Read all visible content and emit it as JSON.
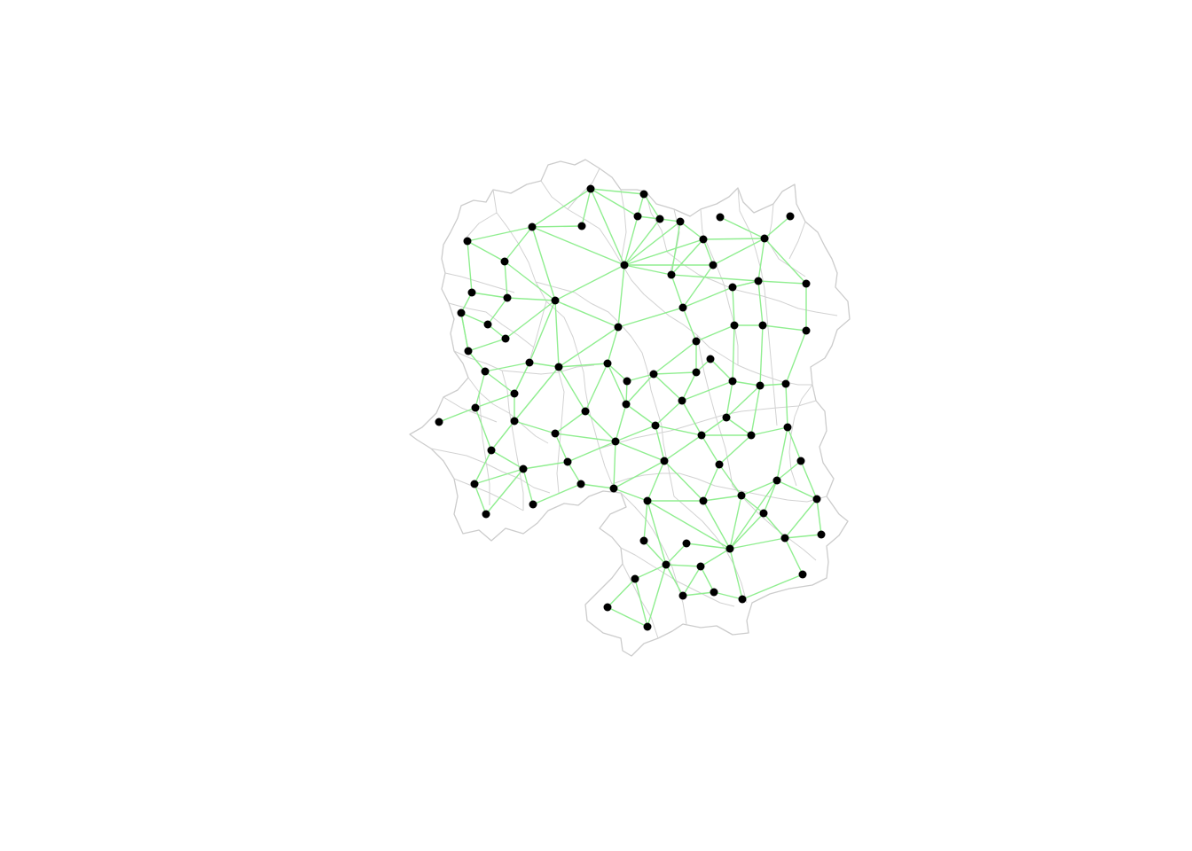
{
  "map": {
    "colors": {
      "background": "#ffffff",
      "boundary": "#cccccc",
      "edge": "#90ee90",
      "node": "#000000"
    }
  }
}
